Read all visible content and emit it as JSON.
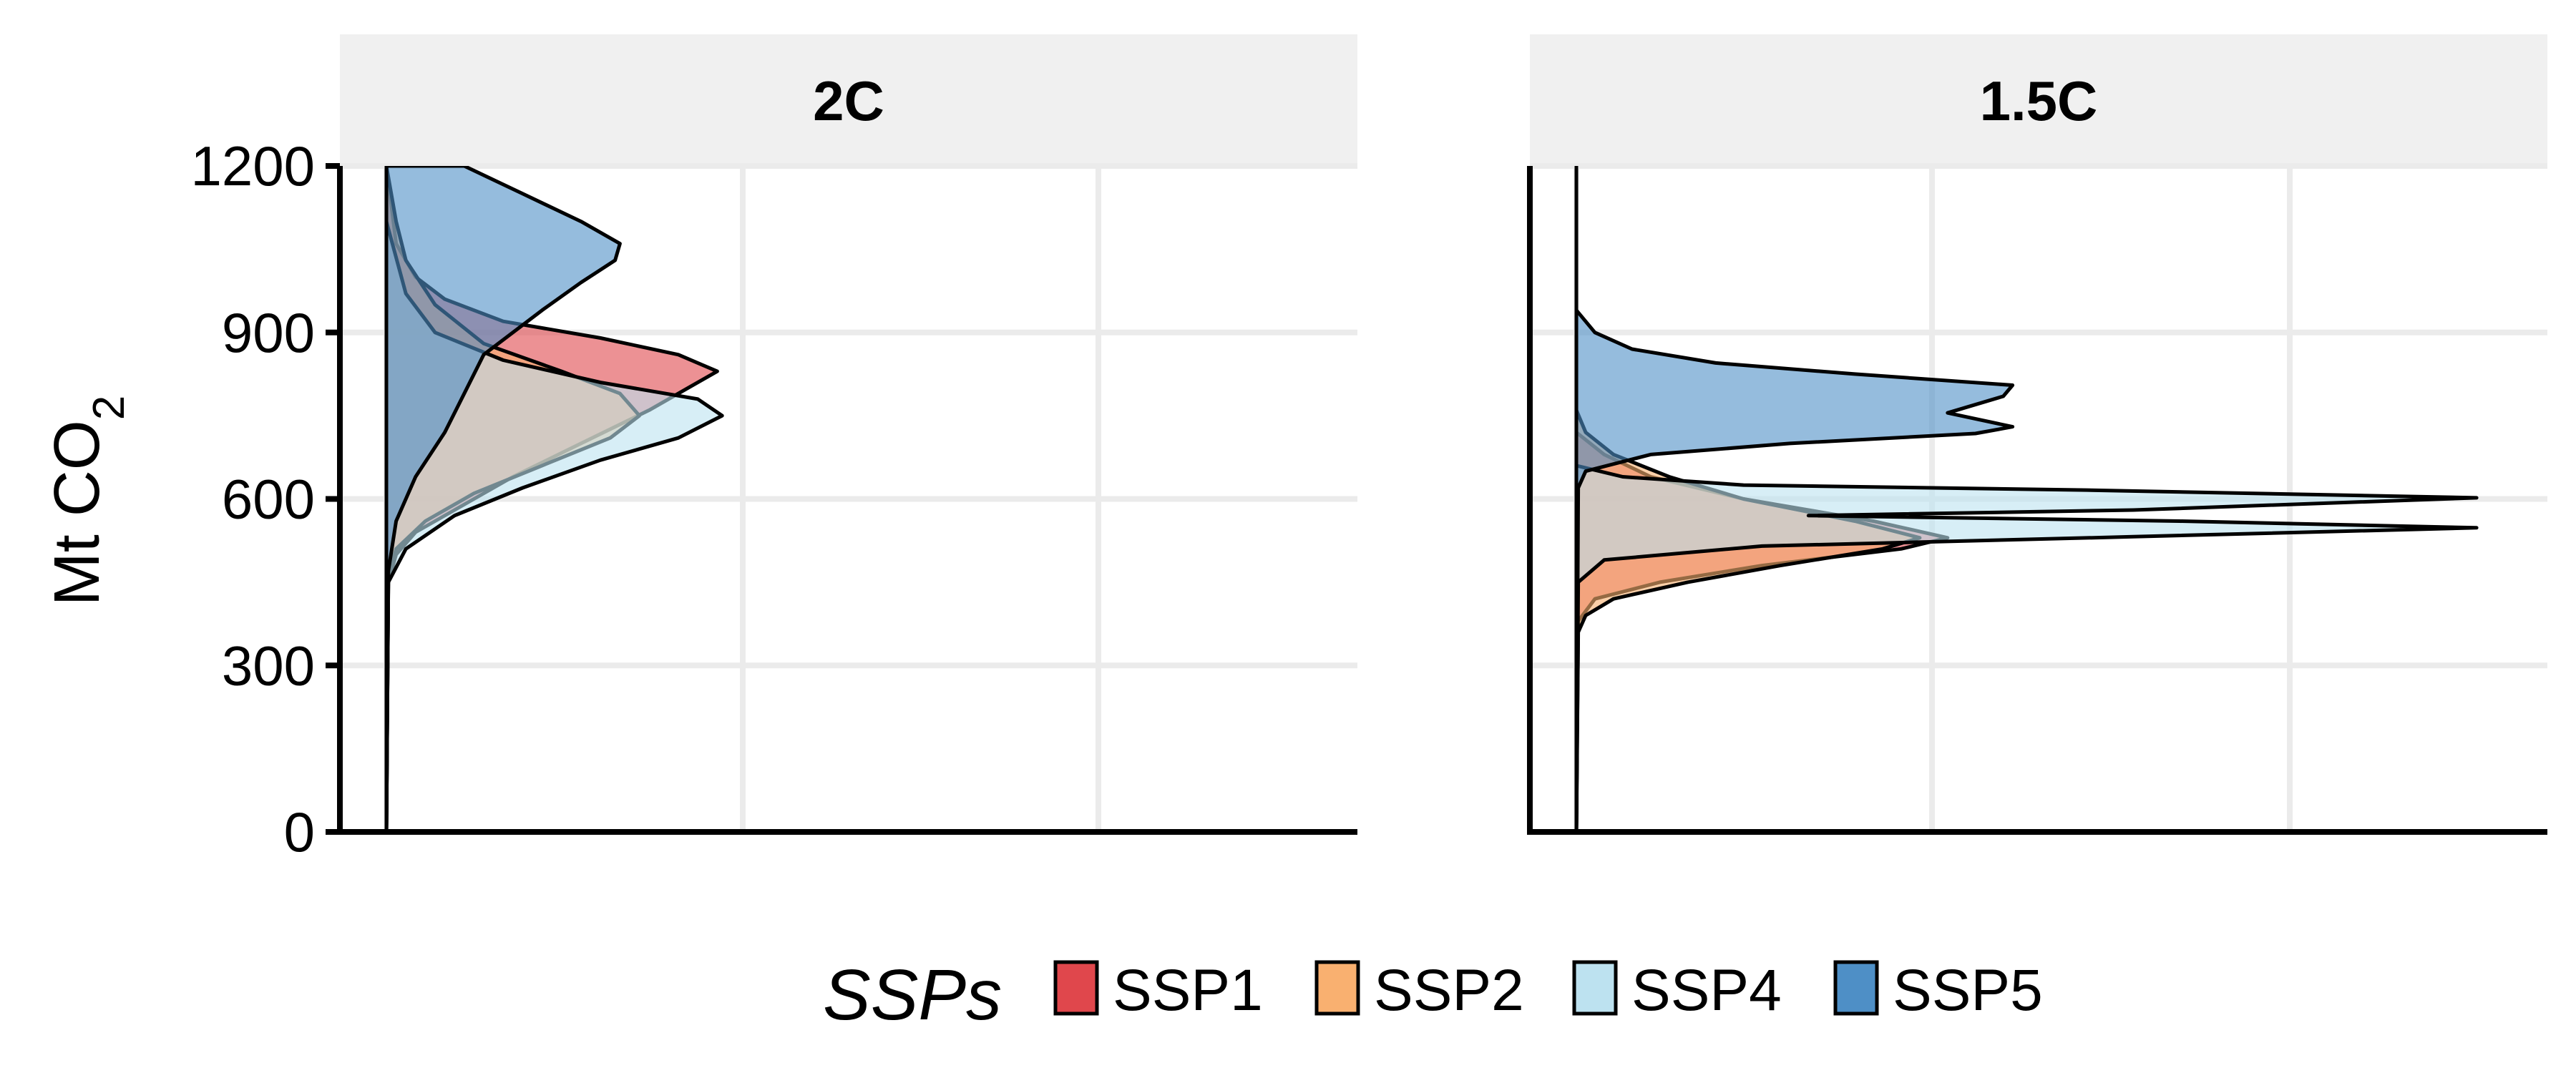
{
  "chart_data": {
    "type": "area",
    "subtype": "density",
    "ylabel": "Mt CO2",
    "ylabel_parts": {
      "main": "Mt CO",
      "sub": "2"
    },
    "ylim": [
      0,
      1200
    ],
    "yticks": [
      "0",
      "300",
      "600",
      "900",
      "1200"
    ],
    "xlabel": "",
    "grid": true,
    "legend": {
      "position": "bottom",
      "title": "SSPs",
      "entries": [
        {
          "name": "SSP1",
          "color": "#E0474C"
        },
        {
          "name": "SSP2",
          "color": "#F9B070"
        },
        {
          "name": "SSP4",
          "color": "#BDE2F0"
        },
        {
          "name": "SSP5",
          "color": "#4E8FC6"
        }
      ]
    },
    "facets": [
      {
        "title": "2C",
        "xlim": [
          0,
          1
        ],
        "series": [
          {
            "name": "SSP1",
            "points": [
              [
                0,
                0
              ],
              [
                0.002,
                450
              ],
              [
                0.01,
                500
              ],
              [
                0.03,
                540
              ],
              [
                0.07,
                580
              ],
              [
                0.13,
                640
              ],
              [
                0.2,
                700
              ],
              [
                0.27,
                760
              ],
              [
                0.31,
                800
              ],
              [
                0.34,
                830
              ],
              [
                0.3,
                860
              ],
              [
                0.22,
                890
              ],
              [
                0.12,
                920
              ],
              [
                0.06,
                960
              ],
              [
                0.03,
                1000
              ],
              [
                0.01,
                1060
              ],
              [
                0,
                1200
              ]
            ]
          },
          {
            "name": "SSP2",
            "points": [
              [
                0,
                0
              ],
              [
                0.002,
                460
              ],
              [
                0.01,
                510
              ],
              [
                0.04,
                560
              ],
              [
                0.09,
                610
              ],
              [
                0.16,
                660
              ],
              [
                0.23,
                710
              ],
              [
                0.26,
                750
              ],
              [
                0.24,
                790
              ],
              [
                0.18,
                830
              ],
              [
                0.1,
                880
              ],
              [
                0.05,
                950
              ],
              [
                0.02,
                1030
              ],
              [
                0.01,
                1100
              ],
              [
                0,
                1200
              ]
            ]
          },
          {
            "name": "SSP4",
            "points": [
              [
                0,
                0
              ],
              [
                0.002,
                450
              ],
              [
                0.02,
                510
              ],
              [
                0.07,
                570
              ],
              [
                0.14,
                620
              ],
              [
                0.22,
                670
              ],
              [
                0.3,
                710
              ],
              [
                0.345,
                750
              ],
              [
                0.32,
                780
              ],
              [
                0.22,
                810
              ],
              [
                0.12,
                850
              ],
              [
                0.05,
                900
              ],
              [
                0.02,
                970
              ],
              [
                0,
                1100
              ]
            ]
          },
          {
            "name": "SSP5",
            "points": [
              [
                0,
                0
              ],
              [
                0.002,
                470
              ],
              [
                0.01,
                560
              ],
              [
                0.03,
                640
              ],
              [
                0.06,
                720
              ],
              [
                0.08,
                790
              ],
              [
                0.1,
                860
              ],
              [
                0.13,
                900
              ],
              [
                0.16,
                940
              ],
              [
                0.2,
                990
              ],
              [
                0.235,
                1030
              ],
              [
                0.24,
                1060
              ],
              [
                0.2,
                1100
              ],
              [
                0.14,
                1150
              ],
              [
                0.08,
                1200
              ]
            ]
          }
        ]
      },
      {
        "title": "1.5C",
        "xlim": [
          0,
          1
        ],
        "series": [
          {
            "name": "SSP1",
            "points": [
              [
                0,
                0
              ],
              [
                0.002,
                380
              ],
              [
                0.02,
                420
              ],
              [
                0.09,
                450
              ],
              [
                0.2,
                480
              ],
              [
                0.35,
                510
              ],
              [
                0.4,
                530
              ],
              [
                0.32,
                560
              ],
              [
                0.18,
                600
              ],
              [
                0.08,
                640
              ],
              [
                0.03,
                680
              ],
              [
                0,
                720
              ]
            ]
          },
          {
            "name": "SSP2",
            "points": [
              [
                0,
                0
              ],
              [
                0.002,
                360
              ],
              [
                0.01,
                390
              ],
              [
                0.04,
                420
              ],
              [
                0.12,
                450
              ],
              [
                0.22,
                480
              ],
              [
                0.33,
                510
              ],
              [
                0.37,
                530
              ],
              [
                0.3,
                560
              ],
              [
                0.18,
                600
              ],
              [
                0.1,
                640
              ],
              [
                0.04,
                680
              ],
              [
                0.01,
                720
              ],
              [
                0,
                760
              ]
            ]
          },
          {
            "name": "SSP4",
            "points": [
              [
                0,
                0
              ],
              [
                0.002,
                450
              ],
              [
                0.03,
                490
              ],
              [
                0.2,
                515
              ],
              [
                0.6,
                532
              ],
              [
                0.97,
                548
              ],
              [
                0.65,
                560
              ],
              [
                0.25,
                570
              ],
              [
                0.6,
                580
              ],
              [
                0.97,
                602
              ],
              [
                0.55,
                616
              ],
              [
                0.18,
                625
              ],
              [
                0.05,
                640
              ],
              [
                0,
                660
              ]
            ]
          },
          {
            "name": "SSP5",
            "points": [
              [
                0,
                0
              ],
              [
                0.002,
                620
              ],
              [
                0.01,
                650
              ],
              [
                0.08,
                680
              ],
              [
                0.23,
                700
              ],
              [
                0.43,
                718
              ],
              [
                0.47,
                730
              ],
              [
                0.4,
                755
              ],
              [
                0.46,
                785
              ],
              [
                0.47,
                805
              ],
              [
                0.3,
                825
              ],
              [
                0.15,
                845
              ],
              [
                0.06,
                870
              ],
              [
                0.02,
                900
              ],
              [
                0,
                940
              ]
            ]
          }
        ]
      }
    ]
  }
}
